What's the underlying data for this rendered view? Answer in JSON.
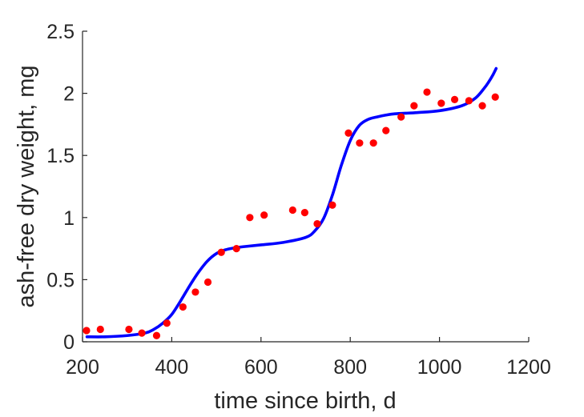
{
  "chart_data": {
    "type": "scatter",
    "xlabel": "time since birth, d",
    "ylabel": "ash-free dry weight, mg",
    "xlim": [
      200,
      1200
    ],
    "ylim": [
      0,
      2.5
    ],
    "xticks": [
      200,
      400,
      600,
      800,
      1000,
      1200
    ],
    "yticks": [
      0,
      0.5,
      1,
      1.5,
      2,
      2.5
    ],
    "ytick_labels": [
      "0",
      "0.5",
      "1",
      "1.5",
      "2",
      "2.5"
    ],
    "grid": false,
    "legend": "none",
    "series": [
      {
        "kind": "points",
        "color": "#ff0000",
        "x": [
          209,
          240,
          304,
          333,
          366,
          389,
          425,
          453,
          481,
          511,
          545,
          575,
          607,
          671,
          698,
          726,
          760,
          796,
          821,
          852,
          880,
          914,
          943,
          972,
          1004,
          1034,
          1066,
          1096,
          1125
        ],
        "y": [
          0.09,
          0.1,
          0.1,
          0.07,
          0.05,
          0.15,
          0.28,
          0.4,
          0.48,
          0.72,
          0.75,
          1.0,
          1.02,
          1.06,
          1.04,
          0.95,
          1.1,
          1.68,
          1.6,
          1.6,
          1.7,
          1.81,
          1.9,
          2.01,
          1.92,
          1.95,
          1.94,
          1.9,
          1.97
        ]
      },
      {
        "kind": "line",
        "color": "#0000ff",
        "x": [
          210,
          250,
          300,
          340,
          360,
          380,
          400,
          420,
          440,
          460,
          480,
          500,
          520,
          540,
          560,
          600,
          650,
          700,
          720,
          740,
          760,
          780,
          800,
          820,
          840,
          860,
          880,
          900,
          950,
          1000,
          1050,
          1080,
          1100,
          1110,
          1120,
          1127
        ],
        "y": [
          0.04,
          0.04,
          0.05,
          0.07,
          0.1,
          0.15,
          0.22,
          0.33,
          0.45,
          0.56,
          0.65,
          0.71,
          0.74,
          0.755,
          0.765,
          0.78,
          0.8,
          0.84,
          0.89,
          0.99,
          1.18,
          1.42,
          1.62,
          1.74,
          1.79,
          1.81,
          1.825,
          1.835,
          1.845,
          1.86,
          1.9,
          1.96,
          2.04,
          2.09,
          2.15,
          2.2
        ]
      }
    ]
  }
}
